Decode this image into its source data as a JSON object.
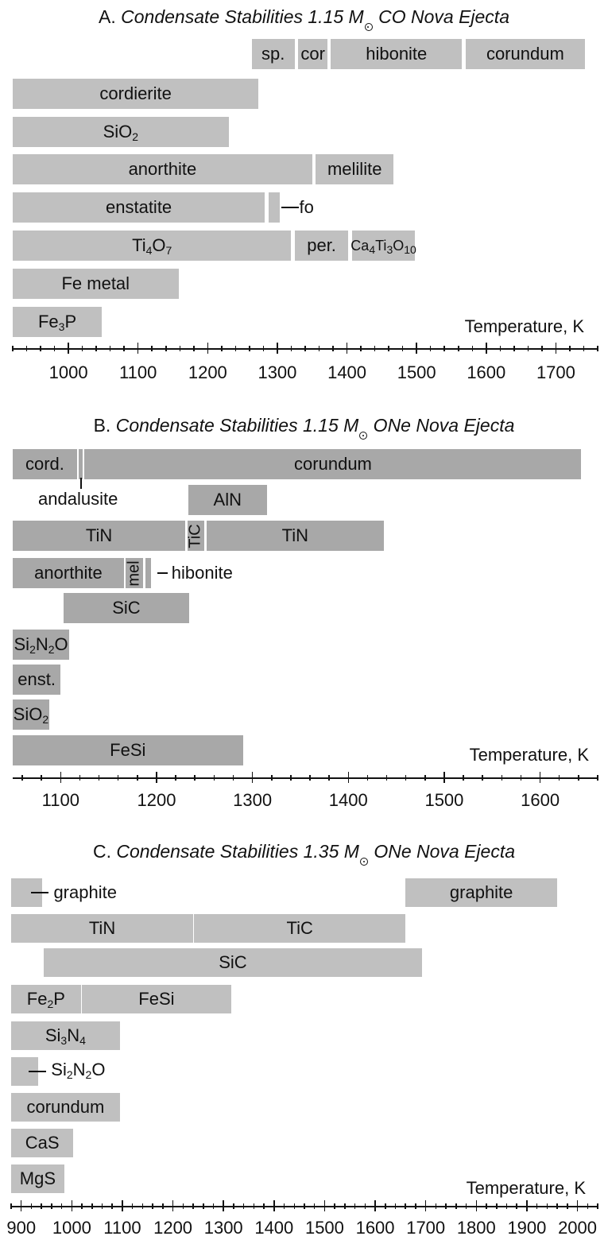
{
  "chart_data": [
    {
      "type": "bar",
      "title_prefix": "A. ",
      "title_main": "Condensate Stabilities 1.15 M",
      "title_suffix": " CO Nova Ejecta",
      "xlabel": "Temperature, K",
      "xlim": [
        920,
        1760
      ],
      "ticks": [
        1000,
        1100,
        1200,
        1300,
        1400,
        1500,
        1600,
        1700
      ],
      "tick_labels": [
        "1000",
        "1100",
        "1200",
        "1300",
        "1400",
        "1500",
        "1600",
        "1700"
      ],
      "shade": "light",
      "rows": [
        {
          "bars": [
            {
              "label": "sp.",
              "from": 1263,
              "to": 1325
            },
            {
              "label": "cor",
              "from": 1330,
              "to": 1372
            },
            {
              "label": "hibonite",
              "from": 1377,
              "to": 1565
            },
            {
              "label": "corundum",
              "from": 1570,
              "to": 1742
            }
          ]
        },
        {
          "bars": [
            {
              "label": "cordierite",
              "from": 920,
              "to": 1273
            }
          ]
        },
        {
          "bars": [
            {
              "label": "SiO",
              "sub": "2",
              "from": 920,
              "to": 1230
            }
          ]
        },
        {
          "bars": [
            {
              "label": "anorthite",
              "from": 920,
              "to": 1350
            },
            {
              "label": "melilite",
              "from": 1355,
              "to": 1467
            }
          ]
        },
        {
          "bars": [
            {
              "label": "enstatite",
              "from": 920,
              "to": 1282
            },
            {
              "label": "",
              "from": 1287,
              "to": 1304
            }
          ],
          "annotation": "fo"
        },
        {
          "bars": [
            {
              "label": "Ti",
              "sub": "4",
              "label2": "O",
              "sub2": "7",
              "from": 920,
              "to": 1320
            },
            {
              "label": "per.",
              "from": 1325,
              "to": 1402
            },
            {
              "label": "Ca",
              "sub": "4",
              "label2": "Ti",
              "sub2": "3",
              "label3": "O",
              "sub3": "10",
              "from": 1407,
              "to": 1498
            }
          ]
        },
        {
          "bars": [
            {
              "label": "Fe metal",
              "from": 920,
              "to": 1158
            }
          ]
        },
        {
          "bars": [
            {
              "label": "Fe",
              "sub": "3",
              "label2": "P",
              "from": 920,
              "to": 1048
            }
          ]
        }
      ]
    },
    {
      "type": "bar",
      "title_prefix": "B. ",
      "title_main": "Condensate Stabilities 1.15 M",
      "title_suffix": " ONe Nova Ejecta",
      "xlabel": "Temperature, K",
      "xlim": [
        1050,
        1660
      ],
      "ticks": [
        1100,
        1200,
        1300,
        1400,
        1500,
        1600
      ],
      "tick_labels": [
        "1100",
        "1200",
        "1300",
        "1400",
        "1500",
        "1600"
      ],
      "shade": "dark",
      "rows": [
        {
          "bars": [
            {
              "label": "cord.",
              "from": 1050,
              "to": 1117
            },
            {
              "label": "",
              "from": 1119,
              "to": 1123
            },
            {
              "label": "corundum",
              "from": 1125,
              "to": 1643
            }
          ],
          "annotation": "andalusite"
        },
        {
          "bars": [
            {
              "label": "AlN",
              "from": 1233,
              "to": 1315
            }
          ]
        },
        {
          "bars": [
            {
              "label": "TiN",
              "from": 1050,
              "to": 1230
            },
            {
              "label": "TiC",
              "vertical": true,
              "from": 1232,
              "to": 1250
            },
            {
              "label": "TiN",
              "from": 1252,
              "to": 1437
            }
          ]
        },
        {
          "bars": [
            {
              "label": "anorthite",
              "from": 1050,
              "to": 1166
            },
            {
              "label": "mel",
              "vertical": true,
              "from": 1168,
              "to": 1186
            },
            {
              "label": "",
              "from": 1188,
              "to": 1194
            }
          ],
          "annotation": "hibonite"
        },
        {
          "bars": [
            {
              "label": "SiC",
              "from": 1103,
              "to": 1234
            }
          ]
        },
        {
          "bars": [
            {
              "label": "Si",
              "sub": "2",
              "label2": "N",
              "sub2": "2",
              "label3": "O",
              "from": 1050,
              "to": 1109
            }
          ]
        },
        {
          "bars": [
            {
              "label": "enst.",
              "from": 1050,
              "to": 1100
            }
          ]
        },
        {
          "bars": [
            {
              "label": "SiO",
              "sub": "2",
              "from": 1050,
              "to": 1088
            }
          ]
        },
        {
          "bars": [
            {
              "label": "FeSi",
              "from": 1050,
              "to": 1290
            }
          ]
        }
      ]
    },
    {
      "type": "bar",
      "title_prefix": "C. ",
      "title_main": "Condensate Stabilities 1.35 M",
      "title_suffix": " ONe Nova Ejecta",
      "xlabel": "Temperature, K",
      "xlim": [
        880,
        2040
      ],
      "ticks": [
        900,
        1000,
        1100,
        1200,
        1300,
        1400,
        1500,
        1600,
        1700,
        1800,
        1900,
        2000
      ],
      "tick_labels": [
        "900",
        "1000",
        "1100",
        "1200",
        "1300",
        "1400",
        "1500",
        "1600",
        "1700",
        "1800",
        "1900",
        "2000"
      ],
      "shade": "light",
      "rows": [
        {
          "bars": [
            {
              "label": "",
              "from": 880,
              "to": 942
            },
            {
              "label": "graphite",
              "from": 1660,
              "to": 1960
            }
          ],
          "annotation": "graphite"
        },
        {
          "bars": [
            {
              "label": "TiN",
              "from": 880,
              "to": 1240
            },
            {
              "label": "TiC",
              "from": 1242,
              "to": 1660
            }
          ]
        },
        {
          "bars": [
            {
              "label": "SiC",
              "from": 945,
              "to": 1692
            }
          ]
        },
        {
          "bars": [
            {
              "label": "Fe",
              "sub": "2",
              "label2": "P",
              "from": 880,
              "to": 1018
            },
            {
              "label": "FeSi",
              "from": 1020,
              "to": 1315
            }
          ]
        },
        {
          "bars": [
            {
              "label": "Si",
              "sub": "3",
              "label2": "N",
              "sub2": "4",
              "from": 880,
              "to": 1095
            }
          ]
        },
        {
          "bars": [
            {
              "label": "",
              "from": 880,
              "to": 933
            }
          ],
          "annotation": "Si2N2O"
        },
        {
          "bars": [
            {
              "label": "corundum",
              "from": 880,
              "to": 1095
            }
          ]
        },
        {
          "bars": [
            {
              "label": "CaS",
              "from": 880,
              "to": 1003
            }
          ]
        },
        {
          "bars": [
            {
              "label": "MgS",
              "from": 880,
              "to": 985
            }
          ]
        }
      ]
    }
  ],
  "annotations": {
    "fo": "fo",
    "andalusite": "andalusite",
    "hibonite": "hibonite",
    "graphite": "graphite",
    "si2n2o": {
      "a": "Si",
      "s1": "2",
      "b": "N",
      "s2": "2",
      "c": "O"
    }
  }
}
